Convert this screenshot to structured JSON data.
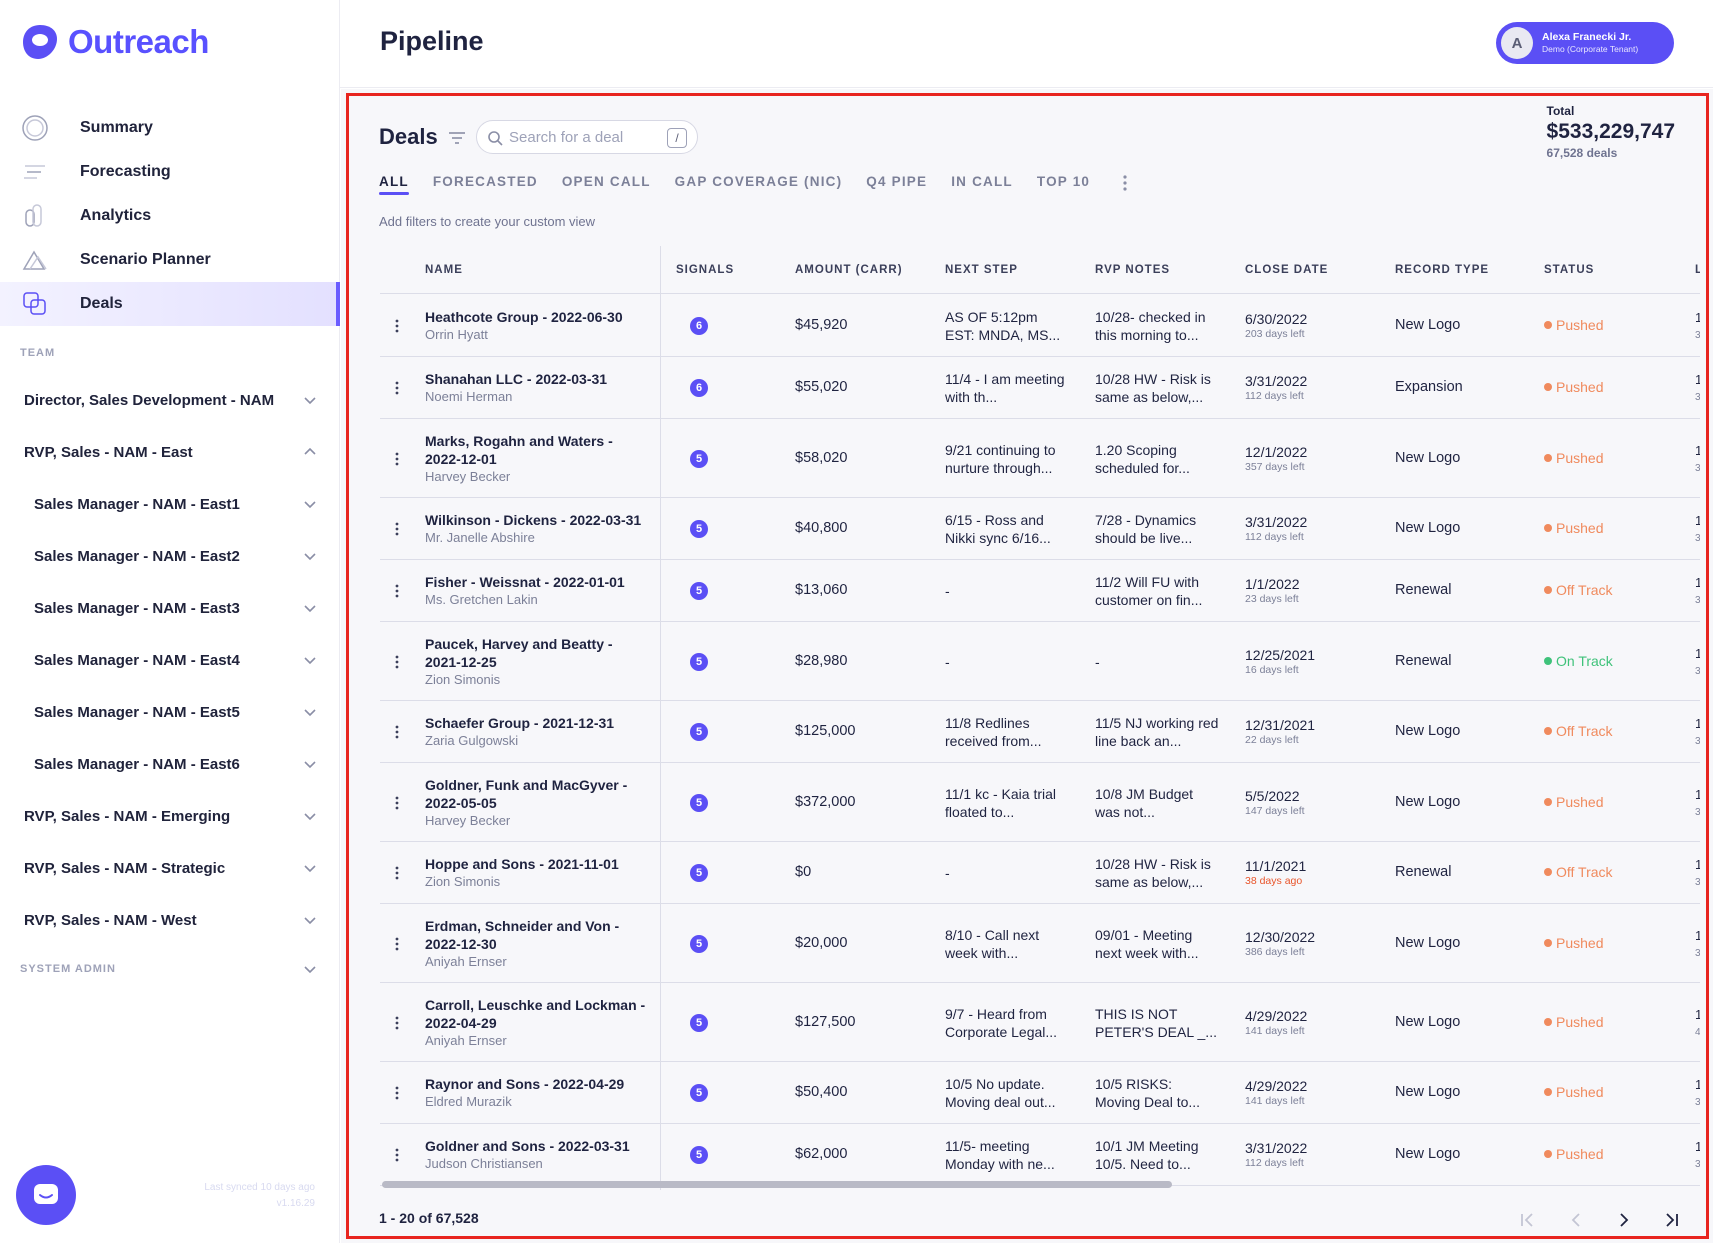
{
  "app": {
    "brand": "Outreach",
    "page_title": "Pipeline"
  },
  "user": {
    "initial": "A",
    "name": "Alexa Franecki Jr.",
    "tenant": "Demo (Corporate Tenant)"
  },
  "nav": [
    {
      "label": "Summary",
      "icon": "summary-icon"
    },
    {
      "label": "Forecasting",
      "icon": "forecasting-icon"
    },
    {
      "label": "Analytics",
      "icon": "analytics-icon"
    },
    {
      "label": "Scenario Planner",
      "icon": "scenario-planner-icon"
    },
    {
      "label": "Deals",
      "icon": "deals-icon",
      "active": true
    }
  ],
  "team_label": "TEAM",
  "team": [
    {
      "label": "Director, Sales Development - NAM",
      "level": 0,
      "expanded": false
    },
    {
      "label": "RVP, Sales - NAM - East",
      "level": 0,
      "expanded": true
    },
    {
      "label": "Sales Manager - NAM - East1",
      "level": 1,
      "expanded": false
    },
    {
      "label": "Sales Manager - NAM - East2",
      "level": 1,
      "expanded": false
    },
    {
      "label": "Sales Manager - NAM - East3",
      "level": 1,
      "expanded": false
    },
    {
      "label": "Sales Manager - NAM - East4",
      "level": 1,
      "expanded": false
    },
    {
      "label": "Sales Manager - NAM - East5",
      "level": 1,
      "expanded": false
    },
    {
      "label": "Sales Manager - NAM - East6",
      "level": 1,
      "expanded": false
    },
    {
      "label": "RVP, Sales - NAM - Emerging",
      "level": 0,
      "expanded": false
    },
    {
      "label": "RVP, Sales - NAM - Strategic",
      "level": 0,
      "expanded": false
    },
    {
      "label": "RVP, Sales - NAM - West",
      "level": 0,
      "expanded": false
    }
  ],
  "system_admin_label": "SYSTEM ADMIN",
  "sync": {
    "last_synced": "Last synced 10 days ago",
    "version": "v1.16.29"
  },
  "deals": {
    "title": "Deals",
    "search_placeholder": "Search for a deal",
    "search_shortcut": "/",
    "total_label": "Total",
    "total_value": "$533,229,747",
    "total_count": "67,528 deals",
    "tabs": [
      "ALL",
      "FORECASTED",
      "OPEN CALL",
      "GAP COVERAGE (NIC)",
      "Q4 PIPE",
      "IN CALL",
      "TOP 10"
    ],
    "active_tab": 0,
    "hint": "Add filters to create your custom view",
    "columns": {
      "name": "NAME",
      "signals": "SIGNALS",
      "amount": "AMOUNT (CARR)",
      "next_step": "NEXT STEP",
      "rvp_notes": "RVP NOTES",
      "close_date": "CLOSE DATE",
      "record_type": "RECORD TYPE",
      "status": "STATUS",
      "last": "LA"
    },
    "rows": [
      {
        "name": "Heathcote Group - 2022-06-30",
        "owner": "Orrin Hyatt",
        "signals": "6",
        "amount": "$45,920",
        "next_step": "AS OF 5:12pm EST: MNDA, MS...",
        "rvp_notes": "10/28- checked in this morning to...",
        "close_date": "6/30/2022",
        "days": "203 days left",
        "overdue": false,
        "record_type": "New Logo",
        "status": "Pushed",
        "status_color": "#f08a5d",
        "last": [
          "1",
          "3"
        ]
      },
      {
        "name": "Shanahan LLC - 2022-03-31",
        "owner": "Noemi Herman",
        "signals": "6",
        "amount": "$55,020",
        "next_step": "11/4 - I am meeting with th...",
        "rvp_notes": "10/28 HW - Risk is same as below,...",
        "close_date": "3/31/2022",
        "days": "112 days left",
        "overdue": false,
        "record_type": "Expansion",
        "status": "Pushed",
        "status_color": "#f08a5d",
        "last": [
          "1",
          "3"
        ]
      },
      {
        "name": "Marks, Rogahn and Waters - 2022-12-01",
        "owner": "Harvey Becker",
        "signals": "5",
        "amount": "$58,020",
        "next_step": "9/21 continuing to nurture through...",
        "rvp_notes": "1.20 Scoping scheduled for...",
        "close_date": "12/1/2022",
        "days": "357 days left",
        "overdue": false,
        "record_type": "New Logo",
        "status": "Pushed",
        "status_color": "#f08a5d",
        "last": [
          "1",
          "3"
        ]
      },
      {
        "name": "Wilkinson - Dickens - 2022-03-31",
        "owner": "Mr. Janelle Abshire",
        "signals": "5",
        "amount": "$40,800",
        "next_step": "6/15 - Ross and Nikki sync 6/16...",
        "rvp_notes": "7/28 - Dynamics should be live...",
        "close_date": "3/31/2022",
        "days": "112 days left",
        "overdue": false,
        "record_type": "New Logo",
        "status": "Pushed",
        "status_color": "#f08a5d",
        "last": [
          "1",
          "3"
        ]
      },
      {
        "name": "Fisher - Weissnat - 2022-01-01",
        "owner": "Ms. Gretchen Lakin",
        "signals": "5",
        "amount": "$13,060",
        "next_step": "-",
        "rvp_notes": "11/2 Will FU with customer on fin...",
        "close_date": "1/1/2022",
        "days": "23 days left",
        "overdue": false,
        "record_type": "Renewal",
        "status": "Off Track",
        "status_color": "#f08a5d",
        "last": [
          "1",
          "3"
        ]
      },
      {
        "name": "Paucek, Harvey and Beatty - 2021-12-25",
        "owner": "Zion Simonis",
        "signals": "5",
        "amount": "$28,980",
        "next_step": "-",
        "rvp_notes": "-",
        "close_date": "12/25/2021",
        "days": "16 days left",
        "overdue": false,
        "record_type": "Renewal",
        "status": "On Track",
        "status_color": "#3fc27a",
        "last": [
          "1",
          "3"
        ]
      },
      {
        "name": "Schaefer Group - 2021-12-31",
        "owner": "Zaria Gulgowski",
        "signals": "5",
        "amount": "$125,000",
        "next_step": "11/8 Redlines received from...",
        "rvp_notes": "11/5 NJ working red line back an...",
        "close_date": "12/31/2021",
        "days": "22 days left",
        "overdue": false,
        "record_type": "New Logo",
        "status": "Off Track",
        "status_color": "#f08a5d",
        "last": [
          "1",
          "3"
        ]
      },
      {
        "name": "Goldner, Funk and MacGyver - 2022-05-05",
        "owner": "Harvey Becker",
        "signals": "5",
        "amount": "$372,000",
        "next_step": "11/1 kc - Kaia trial floated to...",
        "rvp_notes": "10/8 JM Budget was not...",
        "close_date": "5/5/2022",
        "days": "147 days left",
        "overdue": false,
        "record_type": "New Logo",
        "status": "Pushed",
        "status_color": "#f08a5d",
        "last": [
          "1",
          "3"
        ]
      },
      {
        "name": "Hoppe and Sons - 2021-11-01",
        "owner": "Zion Simonis",
        "signals": "5",
        "amount": "$0",
        "next_step": "-",
        "rvp_notes": "10/28 HW - Risk is same as below,...",
        "close_date": "11/1/2021",
        "days": "38 days ago",
        "overdue": true,
        "record_type": "Renewal",
        "status": "Off Track",
        "status_color": "#f08a5d",
        "last": [
          "1",
          "3"
        ]
      },
      {
        "name": "Erdman, Schneider and Von - 2022-12-30",
        "owner": "Aniyah Ernser",
        "signals": "5",
        "amount": "$20,000",
        "next_step": "8/10 - Call next week with...",
        "rvp_notes": "09/01 - Meeting next week with...",
        "close_date": "12/30/2022",
        "days": "386 days left",
        "overdue": false,
        "record_type": "New Logo",
        "status": "Pushed",
        "status_color": "#f08a5d",
        "last": [
          "1",
          "3"
        ]
      },
      {
        "name": "Carroll, Leuschke and Lockman - 2022-04-29",
        "owner": "Aniyah Ernser",
        "signals": "5",
        "amount": "$127,500",
        "next_step": "9/7 - Heard from Corporate Legal...",
        "rvp_notes": "THIS IS NOT PETER'S DEAL _...",
        "close_date": "4/29/2022",
        "days": "141 days left",
        "overdue": false,
        "record_type": "New Logo",
        "status": "Pushed",
        "status_color": "#f08a5d",
        "last": [
          "1",
          "4"
        ]
      },
      {
        "name": "Raynor and Sons - 2022-04-29",
        "owner": "Eldred Murazik",
        "signals": "5",
        "amount": "$50,400",
        "next_step": "10/5 No update. Moving deal out...",
        "rvp_notes": "10/5 RISKS: Moving Deal to...",
        "close_date": "4/29/2022",
        "days": "141 days left",
        "overdue": false,
        "record_type": "New Logo",
        "status": "Pushed",
        "status_color": "#f08a5d",
        "last": [
          "1",
          "3"
        ]
      },
      {
        "name": "Goldner and Sons - 2022-03-31",
        "owner": "Judson Christiansen",
        "signals": "5",
        "amount": "$62,000",
        "next_step": "11/5- meeting Monday with ne...",
        "rvp_notes": "10/1 JM Meeting 10/5. Need to...",
        "close_date": "3/31/2022",
        "days": "112 days left",
        "overdue": false,
        "record_type": "New Logo",
        "status": "Pushed",
        "status_color": "#f08a5d",
        "last": [
          "1",
          "3"
        ]
      }
    ],
    "pagination": "1 - 20 of 67,528"
  },
  "colors": {
    "brand": "#5b4ff5",
    "pushed": "#f08a5d",
    "on_track": "#3fc27a",
    "highlight_border": "#e8251f"
  }
}
